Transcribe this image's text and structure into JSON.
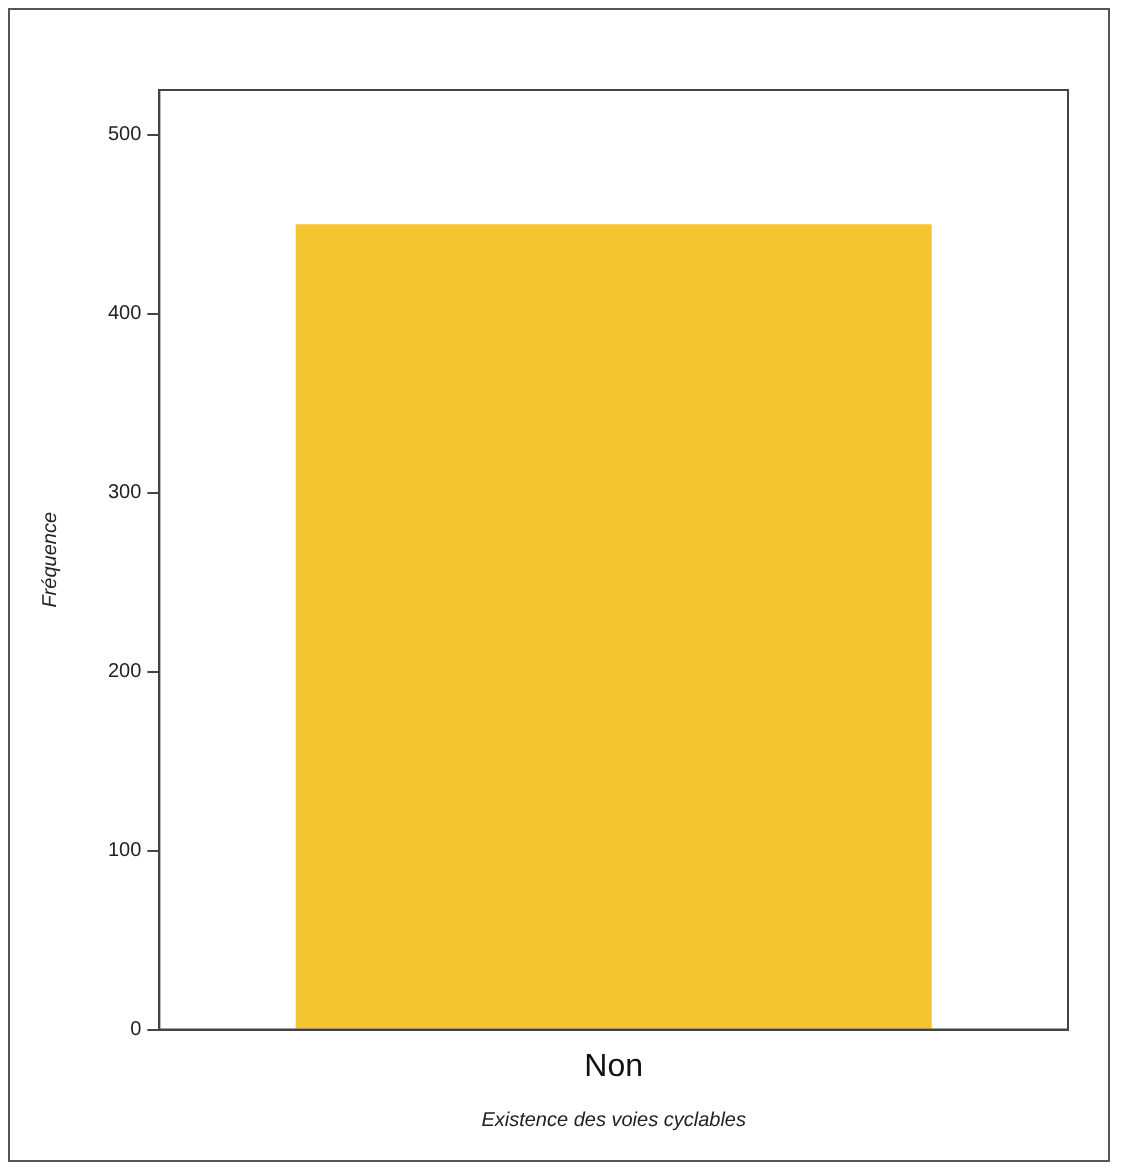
{
  "chart_data": {
    "type": "bar",
    "xlabel": "Existence des voies cyclables",
    "ylabel": "Fréquence",
    "categories": [
      "Non"
    ],
    "values": [
      450
    ],
    "color": "#f5c431",
    "ylim": [
      0,
      525
    ],
    "yticks": [
      0,
      100,
      200,
      300,
      400,
      500
    ],
    "grid": false,
    "legend": false
  }
}
